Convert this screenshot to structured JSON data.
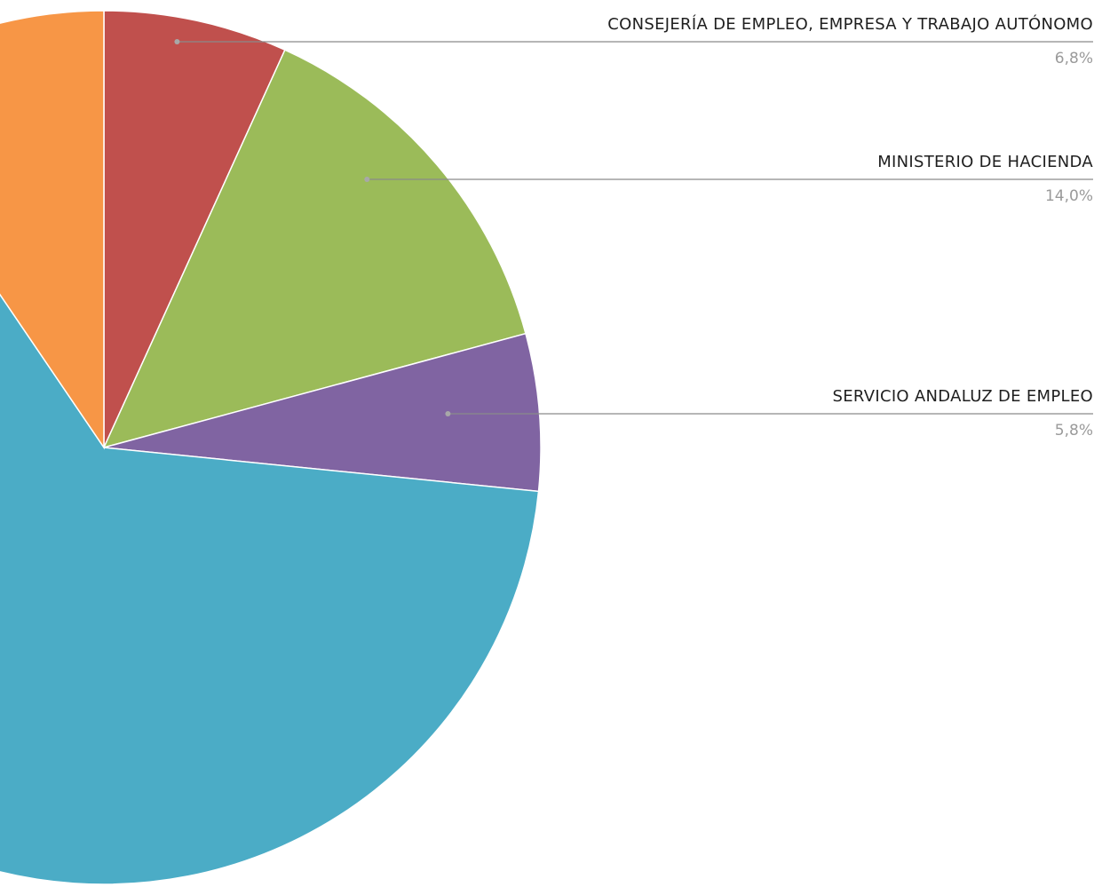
{
  "chart_data": {
    "type": "pie",
    "title": "",
    "start_angle_deg": 0,
    "direction": "clockwise",
    "slices": [
      {
        "label": "CONSEJERÍA DE EMPLEO, EMPRESA Y TRABAJO AUTÓNOMO",
        "display_value": "6,8%",
        "value": 6.8,
        "color": "#C0504D",
        "labeled": true
      },
      {
        "label": "MINISTERIO DE HACIENDA",
        "display_value": "14,0%",
        "value": 14.0,
        "color": "#9BBB59",
        "labeled": true
      },
      {
        "label": "SERVICIO ANDALUZ DE EMPLEO",
        "display_value": "5,8%",
        "value": 5.8,
        "color": "#8064A2",
        "labeled": true
      },
      {
        "label": "",
        "display_value": "",
        "value": 63.9,
        "color": "#4BACC6",
        "labeled": false
      },
      {
        "label": "",
        "display_value": "",
        "value": 9.5,
        "color": "#F79646",
        "labeled": false
      }
    ]
  }
}
